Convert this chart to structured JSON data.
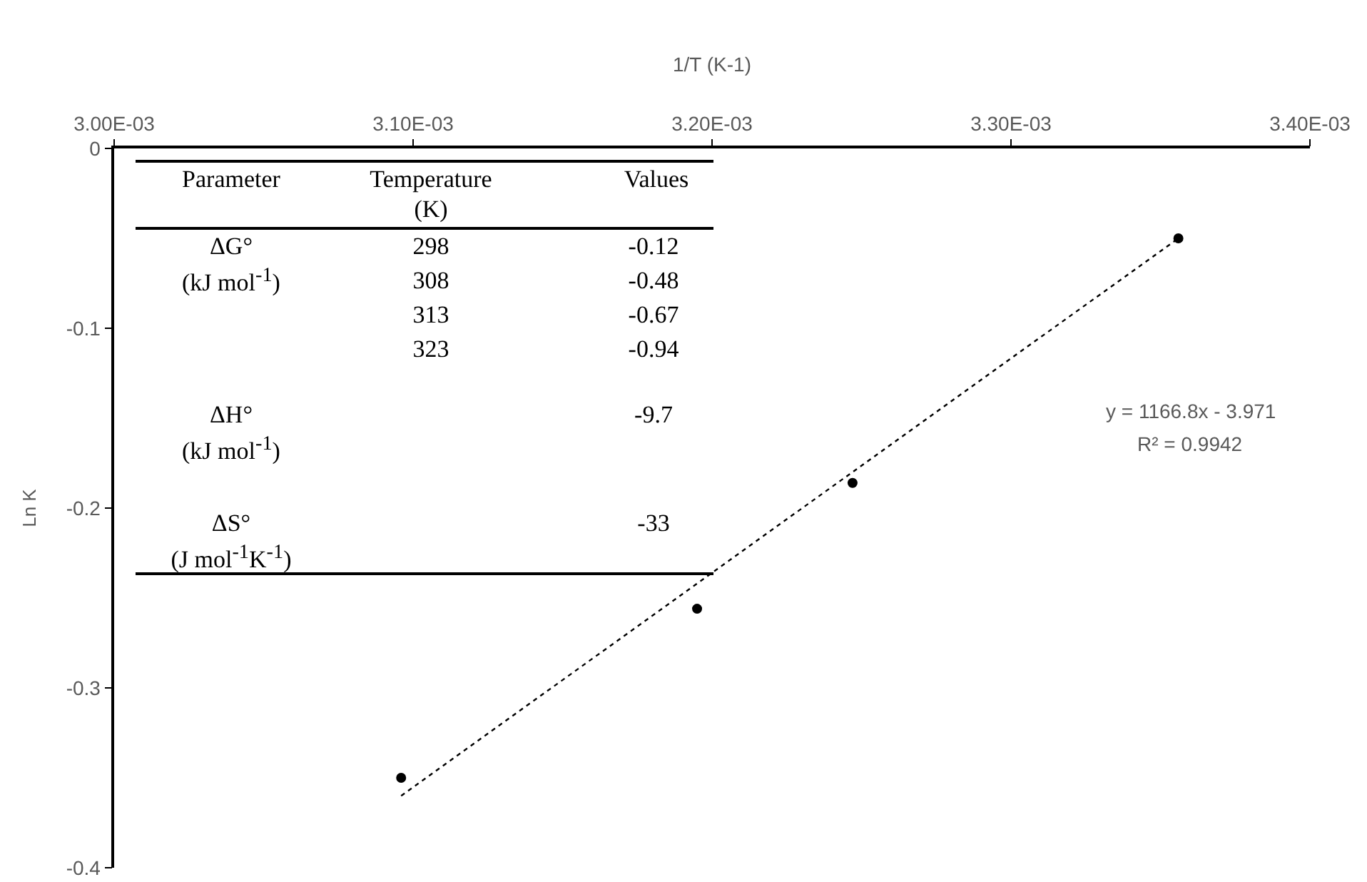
{
  "chart_data": {
    "type": "scatter",
    "xlabel": "1/T (K-1)",
    "ylabel": "Ln K",
    "xlim": [
      0.003,
      0.0034
    ],
    "xticks": [
      {
        "value": 0.003,
        "label": "3.00E-03"
      },
      {
        "value": 0.0031,
        "label": "3.10E-03"
      },
      {
        "value": 0.0032,
        "label": "3.20E-03"
      },
      {
        "value": 0.0033,
        "label": "3.30E-03"
      },
      {
        "value": 0.0034,
        "label": "3.40E-03"
      }
    ],
    "ylim": [
      -0.4,
      0
    ],
    "yticks": [
      0,
      -0.1,
      -0.2,
      -0.3,
      -0.4
    ],
    "series": [
      {
        "color": "#000000",
        "marker": "circle",
        "x": [
          0.003096,
          0.003195,
          0.003247,
          0.003356
        ],
        "values": [
          -0.35,
          -0.256,
          -0.186,
          -0.05
        ]
      },
      {
        "type": "line",
        "color": "#000000",
        "line_style": "dotted",
        "marker": "none",
        "x": [
          0.003096,
          0.003356
        ],
        "values": [
          -0.36,
          -0.05
        ]
      }
    ],
    "annotations": [
      "Parameter",
      "Temperature (K)",
      "Values",
      "ΔG° (kJ mol$^{-1}$)",
      "298",
      "-0.12",
      "308",
      "-0.48",
      "313",
      "-0.67",
      "323",
      "-0.94",
      "ΔH° (kJ mol$^{-1}$)",
      "-9.7",
      "ΔS° (J mol$^{-1}$K$^{-1}$)",
      "-33",
      "y = 1166.8x - 3.971",
      "R² = 0.9942"
    ],
    "grid": false
  }
}
